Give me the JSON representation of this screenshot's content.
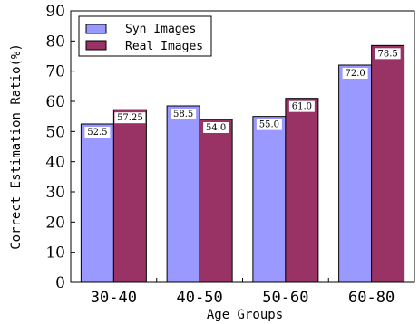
{
  "chart_data": {
    "type": "bar",
    "title": "",
    "xlabel": "Age Groups",
    "ylabel": "Correct Estimation Ratio(%)",
    "categories": [
      "30-40",
      "40-50",
      "50-60",
      "60-80"
    ],
    "ylim": [
      0,
      90
    ],
    "yticks": [
      0,
      10,
      20,
      30,
      40,
      50,
      60,
      70,
      80,
      90
    ],
    "ytick_labels": [
      "0",
      "10",
      "20",
      "30",
      "40",
      "50",
      "60",
      "70",
      "80",
      "90"
    ],
    "series": [
      {
        "name": "Syn Images",
        "color": "#9999ff",
        "values": [
          52.5,
          58.5,
          55.0,
          72.0
        ],
        "labels": [
          "52.5",
          "58.5",
          "55.0",
          "72.0"
        ]
      },
      {
        "name": "Real Images",
        "color": "#993366",
        "values": [
          57.25,
          54.0,
          61.0,
          78.5
        ],
        "labels": [
          "57.25",
          "54.0",
          "61.0",
          "78.5"
        ]
      }
    ],
    "legend": "top-left",
    "grid": false
  }
}
